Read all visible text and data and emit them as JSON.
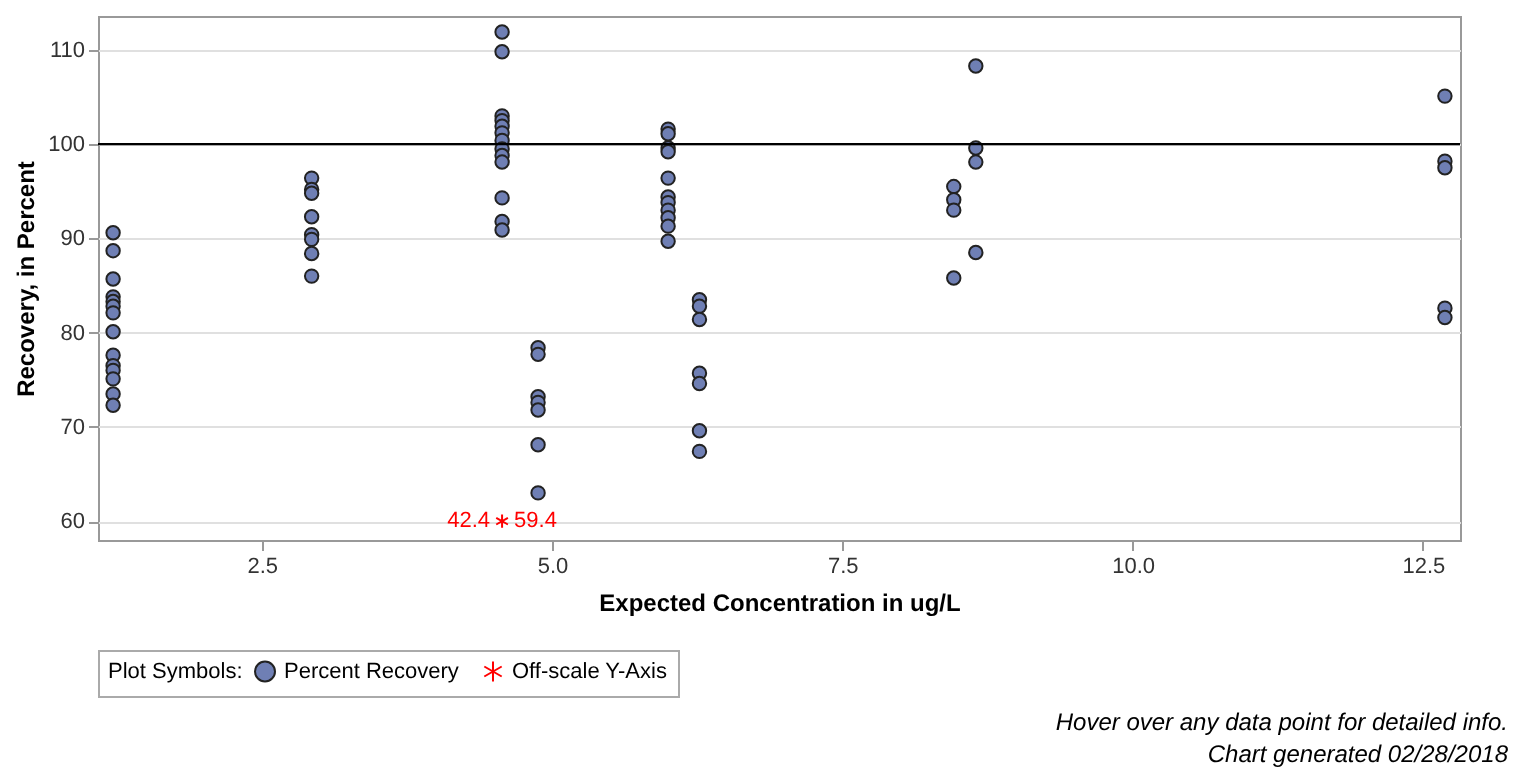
{
  "chart_data": {
    "type": "scatter",
    "xlabel": "Expected Concentration in ug/L",
    "ylabel": "Recovery, in Percent",
    "legend_title": "Plot Symbols:",
    "legend": "bottom",
    "grid": "y",
    "xlim": [
      1.09,
      12.82
    ],
    "ylim": [
      58,
      113.6
    ],
    "xticks": [
      {
        "value": 2.5,
        "label": "2.5"
      },
      {
        "value": 5,
        "label": "5.0"
      },
      {
        "value": 7.5,
        "label": "7.5"
      },
      {
        "value": 10,
        "label": "10.0"
      },
      {
        "value": 12.5,
        "label": "12.5"
      }
    ],
    "yticks": [
      60,
      70,
      80,
      90,
      100,
      110
    ],
    "ref_lines": [
      {
        "axis": "y",
        "value": 100,
        "color": "#000000"
      }
    ],
    "series": [
      {
        "name": "Percent Recovery",
        "color": "#6f7fb4",
        "marker": "circle",
        "x": [
          1.22,
          1.22,
          1.22,
          1.22,
          1.22,
          1.22,
          1.22,
          1.22,
          1.22,
          1.22,
          1.22,
          1.22,
          1.22,
          1.22,
          2.93,
          2.93,
          2.93,
          2.93,
          2.93,
          2.93,
          2.93,
          2.93,
          4.57,
          4.57,
          4.57,
          4.57,
          4.57,
          4.57,
          4.57,
          4.57,
          4.57,
          4.57,
          4.57,
          4.57,
          4.57,
          4.88,
          4.88,
          4.88,
          4.88,
          4.88,
          4.88,
          4.88,
          6.0,
          6.0,
          6.0,
          6.0,
          6.0,
          6.0,
          6.0,
          6.0,
          6.0,
          6.0,
          6.0,
          6.27,
          6.27,
          6.27,
          6.27,
          6.27,
          6.27,
          6.27,
          8.46,
          8.46,
          8.46,
          8.46,
          8.65,
          8.65,
          8.65,
          8.65,
          12.69,
          12.69,
          12.69,
          12.69,
          12.69
        ],
        "values": [
          90.6,
          88.7,
          85.7,
          83.8,
          83.3,
          82.8,
          82.1,
          80.1,
          77.6,
          76.5,
          76.0,
          75.1,
          73.5,
          72.3,
          96.4,
          95.2,
          94.8,
          92.3,
          90.4,
          89.9,
          88.4,
          86.0,
          111.9,
          109.8,
          103.0,
          102.5,
          101.9,
          101.2,
          100.4,
          99.5,
          98.8,
          98.1,
          94.3,
          91.8,
          90.9,
          78.4,
          77.7,
          73.2,
          72.6,
          71.8,
          68.1,
          63.0,
          101.6,
          101.1,
          99.6,
          99.2,
          96.4,
          94.4,
          93.8,
          93.0,
          92.2,
          91.3,
          89.7,
          83.5,
          82.8,
          81.4,
          75.7,
          74.6,
          69.6,
          67.4,
          95.5,
          94.1,
          93.0,
          85.8,
          108.3,
          99.6,
          98.1,
          88.5,
          105.1,
          98.2,
          97.5,
          82.6,
          81.6
        ]
      },
      {
        "name": "Off-scale Y-Axis",
        "color": "#ff0000",
        "marker": "cross",
        "x": [
          4.57
        ],
        "values": [
          60
        ]
      }
    ],
    "annotations": [
      {
        "text": "42.4",
        "x": 4.57,
        "y": 60
      },
      {
        "text": "59.4",
        "x": 4.57,
        "y": 60
      },
      "Hover over any data point for detailed info.",
      "Chart generated 02/28/2018"
    ]
  }
}
